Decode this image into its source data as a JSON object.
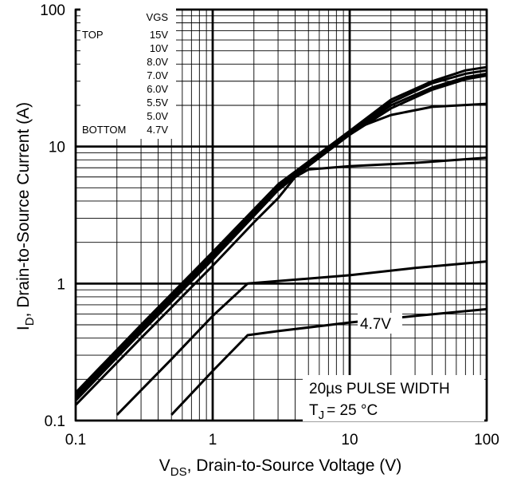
{
  "chart_data": {
    "type": "line",
    "title": "",
    "scale": "log-log",
    "x": {
      "label_main": "V",
      "label_sub": "DS",
      "label_rest": ", Drain-to-Source Voltage (V)",
      "range": [
        0.1,
        100
      ],
      "major_ticks": [
        0.1,
        1,
        10,
        100
      ],
      "tick_labels": [
        "0.1",
        "1",
        "10",
        "100"
      ]
    },
    "y": {
      "label_main": "I",
      "label_sub": "D",
      "label_rest": ",  Drain-to-Source Current (A)",
      "range": [
        0.1,
        100
      ],
      "major_ticks": [
        0.1,
        1,
        10,
        100
      ],
      "tick_labels": [
        "0.1",
        "1",
        "10",
        "100"
      ]
    },
    "legend": {
      "header": "VGS",
      "top_label": "TOP",
      "bottom_label": "BOTTOM",
      "entries": [
        "15V",
        "10V",
        "8.0V",
        "7.0V",
        "6.0V",
        "5.5V",
        "5.0V",
        "4.7V"
      ]
    },
    "curve_label": "4.7V",
    "annotation": {
      "pulse": "20µs PULSE WIDTH",
      "tj_main": "T",
      "tj_sub": "J",
      "tj_rest": "= 25 °C"
    },
    "series": [
      {
        "name": "15V",
        "points": [
          [
            0.1,
            0.16
          ],
          [
            0.3,
            0.5
          ],
          [
            1,
            1.7
          ],
          [
            3,
            5.3
          ],
          [
            10,
            13
          ],
          [
            20,
            22
          ],
          [
            40,
            30
          ],
          [
            70,
            36
          ],
          [
            100,
            38
          ]
        ]
      },
      {
        "name": "10V",
        "points": [
          [
            0.1,
            0.155
          ],
          [
            0.3,
            0.49
          ],
          [
            1,
            1.65
          ],
          [
            3,
            5.2
          ],
          [
            10,
            12.8
          ],
          [
            20,
            21
          ],
          [
            40,
            29
          ],
          [
            70,
            34
          ],
          [
            100,
            36
          ]
        ]
      },
      {
        "name": "8.0V",
        "points": [
          [
            0.1,
            0.15
          ],
          [
            0.3,
            0.47
          ],
          [
            1,
            1.6
          ],
          [
            3,
            5.0
          ],
          [
            10,
            12.5
          ],
          [
            20,
            20
          ],
          [
            40,
            27
          ],
          [
            70,
            32
          ],
          [
            100,
            34
          ]
        ]
      },
      {
        "name": "7.0V",
        "points": [
          [
            0.1,
            0.145
          ],
          [
            0.3,
            0.46
          ],
          [
            1,
            1.55
          ],
          [
            3,
            4.9
          ],
          [
            10,
            12.2
          ],
          [
            20,
            19
          ],
          [
            40,
            26
          ],
          [
            70,
            31
          ],
          [
            100,
            33
          ]
        ]
      },
      {
        "name": "6.0V",
        "points": [
          [
            0.1,
            0.14
          ],
          [
            0.3,
            0.44
          ],
          [
            1,
            1.5
          ],
          [
            3,
            4.8
          ],
          [
            7,
            9.5
          ],
          [
            12,
            14
          ],
          [
            20,
            17
          ],
          [
            40,
            19.5
          ],
          [
            100,
            20.5
          ]
        ]
      },
      {
        "name": "5.5V",
        "points": [
          [
            0.1,
            0.13
          ],
          [
            0.3,
            0.4
          ],
          [
            1,
            1.35
          ],
          [
            2,
            2.8
          ],
          [
            3,
            4.2
          ],
          [
            4,
            6
          ],
          [
            5,
            6.8
          ],
          [
            10,
            7.2
          ],
          [
            30,
            7.6
          ],
          [
            100,
            8.3
          ]
        ]
      },
      {
        "name": "5.0V",
        "points": [
          [
            0.2,
            0.11
          ],
          [
            0.5,
            0.28
          ],
          [
            1,
            0.58
          ],
          [
            1.8,
            1.0
          ],
          [
            10,
            1.15
          ],
          [
            30,
            1.3
          ],
          [
            100,
            1.45
          ]
        ]
      },
      {
        "name": "4.7V",
        "points": [
          [
            0.5,
            0.11
          ],
          [
            1,
            0.23
          ],
          [
            1.8,
            0.42
          ],
          [
            3,
            0.45
          ],
          [
            10,
            0.52
          ],
          [
            30,
            0.58
          ],
          [
            100,
            0.65
          ]
        ]
      }
    ]
  }
}
